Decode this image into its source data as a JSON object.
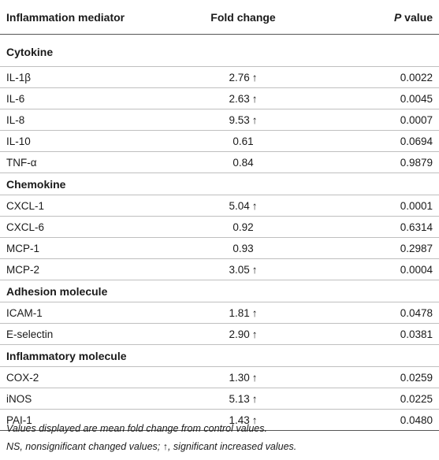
{
  "header": {
    "col1": "Inflammation mediator",
    "col2": "Fold change",
    "col3_italic": "P",
    "col3_rest": " value"
  },
  "sections": [
    {
      "title": "Cytokine",
      "rows": [
        {
          "name": "IL-1β",
          "fold": "2.76",
          "arrow": "↑",
          "p": "0.0022"
        },
        {
          "name": "IL-6",
          "fold": "2.63",
          "arrow": "↑",
          "p": "0.0045"
        },
        {
          "name": "IL-8",
          "fold": "9.53",
          "arrow": "↑",
          "p": "0.0007"
        },
        {
          "name": "IL-10",
          "fold": "0.61",
          "arrow": "",
          "p": "0.0694"
        },
        {
          "name": "TNF-α",
          "fold": "0.84",
          "arrow": "",
          "p": "0.9879"
        }
      ]
    },
    {
      "title": "Chemokine",
      "rows": [
        {
          "name": "CXCL-1",
          "fold": "5.04",
          "arrow": "↑",
          "p": "0.0001"
        },
        {
          "name": "CXCL-6",
          "fold": "0.92",
          "arrow": "",
          "p": "0.6314"
        },
        {
          "name": "MCP-1",
          "fold": "0.93",
          "arrow": "",
          "p": "0.2987"
        },
        {
          "name": "MCP-2",
          "fold": "3.05",
          "arrow": "↑",
          "p": "0.0004"
        }
      ]
    },
    {
      "title": "Adhesion molecule",
      "rows": [
        {
          "name": "ICAM-1",
          "fold": "1.81",
          "arrow": "↑",
          "p": "0.0478"
        },
        {
          "name": "E-selectin",
          "fold": "2.90",
          "arrow": "↑",
          "p": "0.0381"
        }
      ]
    },
    {
      "title": "Inflammatory molecule",
      "rows": [
        {
          "name": "COX-2",
          "fold": "1.30",
          "arrow": "↑",
          "p": "0.0259"
        },
        {
          "name": "iNOS",
          "fold": "5.13",
          "arrow": "↑",
          "p": "0.0225"
        },
        {
          "name": "PAI-1",
          "fold": "1.43",
          "arrow": "↑",
          "p": "0.0480"
        }
      ]
    }
  ],
  "footnotes": {
    "line1": "Values displayed are mean fold change from control values.",
    "line2": "NS, nonsignificant changed values; ↑, significant increased values."
  }
}
